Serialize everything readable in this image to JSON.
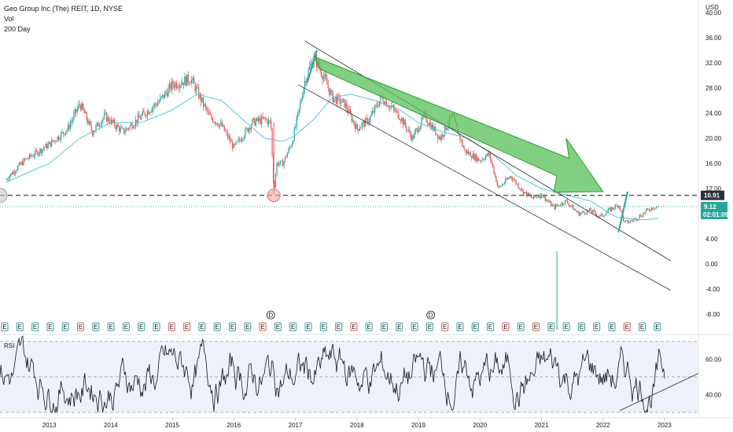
{
  "legend": {
    "title": "Geo Group Inc (The) REIT, 1D, NYSE",
    "vol": "Vol",
    "ma": "200 Day"
  },
  "rsi_label": "RSI",
  "colors": {
    "up": "#26a69a",
    "down": "#ef5350",
    "ma": "#5cc3d6",
    "arrow": "#57c057",
    "arrow_edge": "#2e9b2e",
    "rsi_line": "#131722",
    "rsi_band": "#eef0fa",
    "price_tag": "#2b2f3a",
    "last_tag": "#26a69a"
  },
  "chart_data": [
    {
      "type": "line",
      "title": "Geo Group Inc (The) REIT, 1D, NYSE",
      "currency": "USD",
      "x_axis_ticks": [
        "2013",
        "2014",
        "2015",
        "2016",
        "2017",
        "2018",
        "2019",
        "2020",
        "2021",
        "2022",
        "2023"
      ],
      "y_axis_ticks": [
        "40.00",
        "36.00",
        "32.00",
        "28.00",
        "24.00",
        "20.00",
        "16.00",
        "12.00",
        "8.00",
        "4.00",
        "0.00",
        "-4.00",
        "-8.00"
      ],
      "ylim": [
        -9,
        42
      ],
      "series": [
        {
          "name": "Price",
          "x": [
            2012.3,
            2012.6,
            2013.0,
            2013.3,
            2013.5,
            2013.7,
            2013.9,
            2014.2,
            2014.5,
            2014.8,
            2015.0,
            2015.3,
            2015.6,
            2015.8,
            2016.0,
            2016.3,
            2016.5,
            2016.6,
            2016.65,
            2016.7,
            2016.8,
            2016.95,
            2017.05,
            2017.15,
            2017.3,
            2017.45,
            2017.6,
            2017.8,
            2018.0,
            2018.2,
            2018.4,
            2018.55,
            2018.7,
            2018.9,
            2019.1,
            2019.35,
            2019.55,
            2019.75,
            2020.0,
            2020.15,
            2020.3,
            2020.5,
            2020.7,
            2020.85,
            2021.0,
            2021.2,
            2021.4,
            2021.6,
            2021.8,
            2021.95,
            2022.1,
            2022.25,
            2022.35,
            2022.5,
            2022.65,
            2022.8,
            2022.9
          ],
          "values": [
            13.5,
            16.5,
            19.0,
            21.5,
            25.5,
            21.0,
            23.5,
            21.0,
            23.5,
            26.0,
            28.5,
            29.5,
            23.5,
            22.0,
            18.5,
            22.5,
            23.0,
            22.5,
            11.5,
            16.0,
            16.0,
            19.5,
            24.0,
            29.0,
            33.0,
            30.0,
            26.5,
            25.5,
            21.5,
            23.0,
            26.5,
            25.0,
            23.5,
            20.0,
            23.5,
            20.0,
            23.5,
            18.0,
            16.5,
            17.5,
            12.0,
            14.0,
            11.5,
            10.5,
            11.0,
            9.0,
            10.0,
            8.0,
            8.5,
            7.5,
            8.5,
            9.5,
            6.5,
            7.0,
            8.0,
            9.0,
            9.12
          ]
        },
        {
          "name": "200 Day",
          "x": [
            2012.3,
            2013.0,
            2013.5,
            2014.0,
            2014.5,
            2015.0,
            2015.4,
            2015.8,
            2016.2,
            2016.5,
            2016.8,
            2017.0,
            2017.3,
            2017.6,
            2017.9,
            2018.3,
            2018.7,
            2019.0,
            2019.4,
            2019.8,
            2020.2,
            2020.6,
            2021.0,
            2021.4,
            2021.8,
            2022.2,
            2022.6,
            2022.9
          ],
          "values": [
            13.0,
            16.0,
            20.0,
            22.5,
            22.5,
            24.5,
            27.0,
            26.0,
            22.5,
            20.0,
            19.5,
            20.5,
            23.0,
            26.5,
            27.0,
            26.0,
            24.5,
            22.5,
            21.0,
            20.0,
            17.5,
            14.0,
            12.0,
            11.0,
            10.0,
            7.5,
            7.0,
            7.2
          ]
        }
      ],
      "horizontal_level": 10.91,
      "last_price": 9.12,
      "price_labels": [
        "10.91",
        "9.12",
        "02:01:09"
      ],
      "event_markers": [
        "E",
        "D"
      ],
      "annotation": "Big green arrow pointing down along the descending channel"
    },
    {
      "type": "line",
      "title": "RSI",
      "y_axis_ticks": [
        "60.00",
        "40.00"
      ],
      "ylim": [
        30,
        73
      ],
      "bands": [
        70,
        50,
        30
      ],
      "series": [
        {
          "name": "RSI",
          "x": [],
          "values": []
        }
      ]
    }
  ]
}
